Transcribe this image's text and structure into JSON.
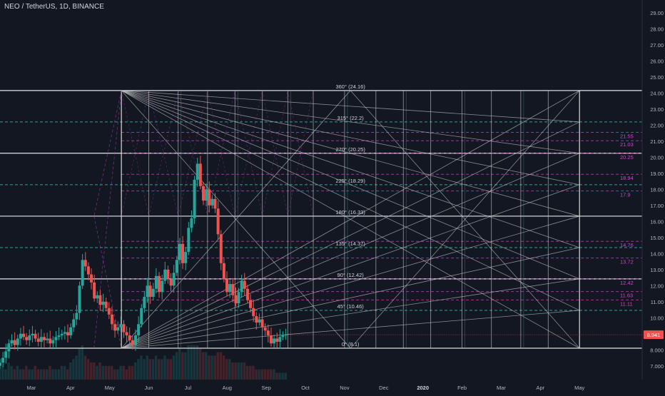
{
  "header": {
    "title": "NEO / TetherUS, 1D, BINANCE"
  },
  "colors": {
    "background": "#131722",
    "grid_white": "#e6e6e6",
    "fan_line": "#c8c8c8",
    "magenta": "#b33cb3",
    "teal": "#2aa39a",
    "candle_up": "#26a69a",
    "candle_down": "#ef5350",
    "price_tag": "#ef5350"
  },
  "chart_data": {
    "type": "candlestick",
    "title": "NEO / TetherUS, 1D, BINANCE",
    "x_axis": {
      "tick_labels": [
        "Mar",
        "Apr",
        "May",
        "Jun",
        "Jul",
        "Aug",
        "Sep",
        "Oct",
        "Nov",
        "Dec",
        "2020",
        "Feb",
        "Mar",
        "Apr",
        "May"
      ],
      "tick_positions": [
        1.0,
        2.0,
        3.0,
        4.0,
        5.0,
        6.0,
        7.0,
        8.0,
        9.0,
        10.0,
        11.0,
        12.0,
        13.0,
        14.0,
        15.0
      ],
      "range": [
        0.2,
        16.6
      ]
    },
    "y_axis": {
      "tick_labels": [
        "7.000",
        "8.000",
        "9.000",
        "10.00",
        "11.00",
        "12.00",
        "13.00",
        "14.00",
        "15.00",
        "16.00",
        "17.00",
        "18.00",
        "19.00",
        "20.00",
        "21.00",
        "22.00",
        "23.00",
        "24.00",
        "25.00",
        "26.00",
        "27.00",
        "28.00",
        "29.00"
      ],
      "range": [
        6.5,
        29.4
      ],
      "side": "right"
    },
    "current_price": {
      "label": "8.941",
      "value": 8.941
    },
    "gann_box": {
      "x_start": 3.3,
      "x_end": 15.0,
      "price_low": 8.1,
      "price_high": 24.16,
      "levels": [
        {
          "label": "0° (8.1)",
          "value": 8.1
        },
        {
          "label": "45° (10.46)",
          "value": 10.46
        },
        {
          "label": "90° (12.42)",
          "value": 12.42
        },
        {
          "label": "135° (14.37)",
          "value": 14.37
        },
        {
          "label": "180° (16.33)",
          "value": 16.33
        },
        {
          "label": "225° (18.29)",
          "value": 18.29
        },
        {
          "label": "270° (20.25)",
          "value": 20.25
        },
        {
          "label": "315° (22.2)",
          "value": 22.2
        },
        {
          "label": "360° (24.16)",
          "value": 24.16
        }
      ],
      "major_levels": [
        8.1,
        12.42,
        16.33,
        20.25,
        24.16
      ],
      "teal_levels": [
        10.46,
        14.37,
        18.29,
        22.2
      ],
      "vertical_lines_x": [
        3.3,
        4.0,
        4.75,
        5.5,
        6.2,
        6.9,
        7.55,
        8.2,
        9.0,
        9.8,
        10.5,
        11.2,
        12.0,
        12.75,
        13.5,
        14.2,
        15.0
      ]
    },
    "magenta_levels": [
      {
        "label": "21.55",
        "value": 21.55
      },
      {
        "label": "21.03",
        "value": 21.03
      },
      {
        "label": "20.25",
        "value": 20.25
      },
      {
        "label": "18.94",
        "value": 18.94
      },
      {
        "label": "17.9",
        "value": 17.9
      },
      {
        "label": "14.76",
        "value": 14.76
      },
      {
        "label": "13.72",
        "value": 13.72
      },
      {
        "label": "12.42",
        "value": 12.42
      },
      {
        "label": "11.63",
        "value": 11.63
      },
      {
        "label": "11.11",
        "value": 11.11
      }
    ],
    "price_series_close": [
      7.2,
      7.5,
      7.9,
      8.4,
      8.6,
      8.3,
      8.7,
      9.0,
      8.8,
      8.6,
      8.9,
      9.0,
      8.7,
      8.5,
      8.8,
      8.6,
      8.7,
      8.4,
      8.6,
      8.8,
      8.9,
      9.0,
      9.1,
      8.9,
      9.4,
      9.9,
      10.3,
      12.0,
      13.6,
      13.2,
      12.7,
      12.2,
      11.2,
      11.4,
      10.8,
      11.0,
      10.6,
      10.2,
      9.6,
      9.2,
      9.4,
      9.6,
      9.1,
      8.9,
      8.6,
      8.3,
      8.9,
      9.6,
      10.6,
      11.3,
      12.0,
      11.3,
      11.8,
      12.6,
      11.6,
      12.3,
      13.0,
      12.4,
      12.0,
      12.8,
      13.6,
      14.6,
      13.4,
      14.1,
      15.6,
      16.2,
      18.6,
      19.6,
      18.2,
      17.3,
      18.0,
      17.0,
      17.4,
      16.8,
      15.2,
      13.4,
      12.4,
      11.6,
      12.1,
      11.4,
      10.9,
      11.6,
      12.3,
      11.8,
      11.1,
      10.6,
      10.1,
      9.7,
      9.9,
      9.4,
      9.2,
      8.9,
      8.4,
      8.7,
      8.5,
      8.8,
      8.9,
      8.941
    ],
    "volume_relative": [
      0.3,
      0.4,
      0.3,
      0.5,
      0.4,
      0.3,
      0.4,
      0.3,
      0.3,
      0.4,
      0.3,
      0.3,
      0.4,
      0.3,
      0.3,
      0.3,
      0.3,
      0.4,
      0.3,
      0.3,
      0.3,
      0.4,
      0.4,
      0.3,
      0.5,
      0.6,
      0.7,
      0.9,
      1.0,
      0.7,
      0.6,
      0.5,
      0.5,
      0.4,
      0.5,
      0.4,
      0.4,
      0.4,
      0.4,
      0.3,
      0.3,
      0.4,
      0.4,
      0.3,
      0.4,
      0.4,
      0.5,
      0.6,
      0.7,
      0.6,
      0.7,
      0.6,
      0.6,
      0.7,
      0.6,
      0.6,
      0.7,
      0.6,
      0.6,
      0.7,
      0.8,
      0.9,
      0.8,
      0.8,
      1.0,
      1.0,
      1.0,
      1.0,
      0.9,
      0.8,
      0.8,
      0.7,
      0.7,
      0.7,
      0.8,
      0.8,
      0.7,
      0.6,
      0.6,
      0.5,
      0.5,
      0.5,
      0.5,
      0.5,
      0.4,
      0.4,
      0.4,
      0.3,
      0.3,
      0.3,
      0.3,
      0.3,
      0.3,
      0.3,
      0.2,
      0.2,
      0.2,
      0.2
    ],
    "price_series_x_range": [
      0.2,
      7.5
    ]
  }
}
